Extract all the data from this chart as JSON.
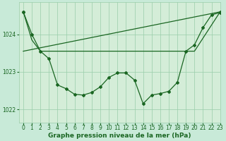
{
  "title": "Graphe pression niveau de la mer (hPa)",
  "background_color": "#c8ead8",
  "plot_bg_color": "#d4edd8",
  "grid_color": "#99ccaa",
  "line_color": "#1a6622",
  "xlim": [
    -0.5,
    23
  ],
  "ylim": [
    1021.65,
    1024.85
  ],
  "yticks": [
    1022,
    1023,
    1024
  ],
  "xticks": [
    0,
    1,
    2,
    3,
    4,
    5,
    6,
    7,
    8,
    9,
    10,
    11,
    12,
    13,
    14,
    15,
    16,
    17,
    18,
    19,
    20,
    21,
    22,
    23
  ],
  "tick_fontsize": 5.5,
  "xlabel_fontsize": 6.5,
  "series1_x": [
    0,
    1,
    2,
    3,
    4,
    5,
    6,
    7,
    8,
    9,
    10,
    11,
    12,
    13,
    14,
    15,
    16,
    17,
    18,
    19,
    20,
    21,
    22,
    23
  ],
  "series1_y": [
    1024.6,
    1024.0,
    1023.55,
    1023.35,
    1022.65,
    1022.55,
    1022.4,
    1022.38,
    1022.45,
    1022.6,
    1022.85,
    1022.97,
    1022.97,
    1022.78,
    1022.15,
    1022.38,
    1022.42,
    1022.48,
    1022.72,
    1023.55,
    1023.72,
    1024.18,
    1024.52,
    1024.58
  ],
  "series2_x": [
    0,
    1,
    2,
    19,
    20,
    23
  ],
  "series2_y": [
    1024.6,
    1023.85,
    1023.55,
    1023.55,
    1023.55,
    1024.6
  ],
  "series3_x": [
    0,
    19,
    20,
    23
  ],
  "series3_y": [
    1023.55,
    1023.55,
    1023.55,
    1024.6
  ]
}
